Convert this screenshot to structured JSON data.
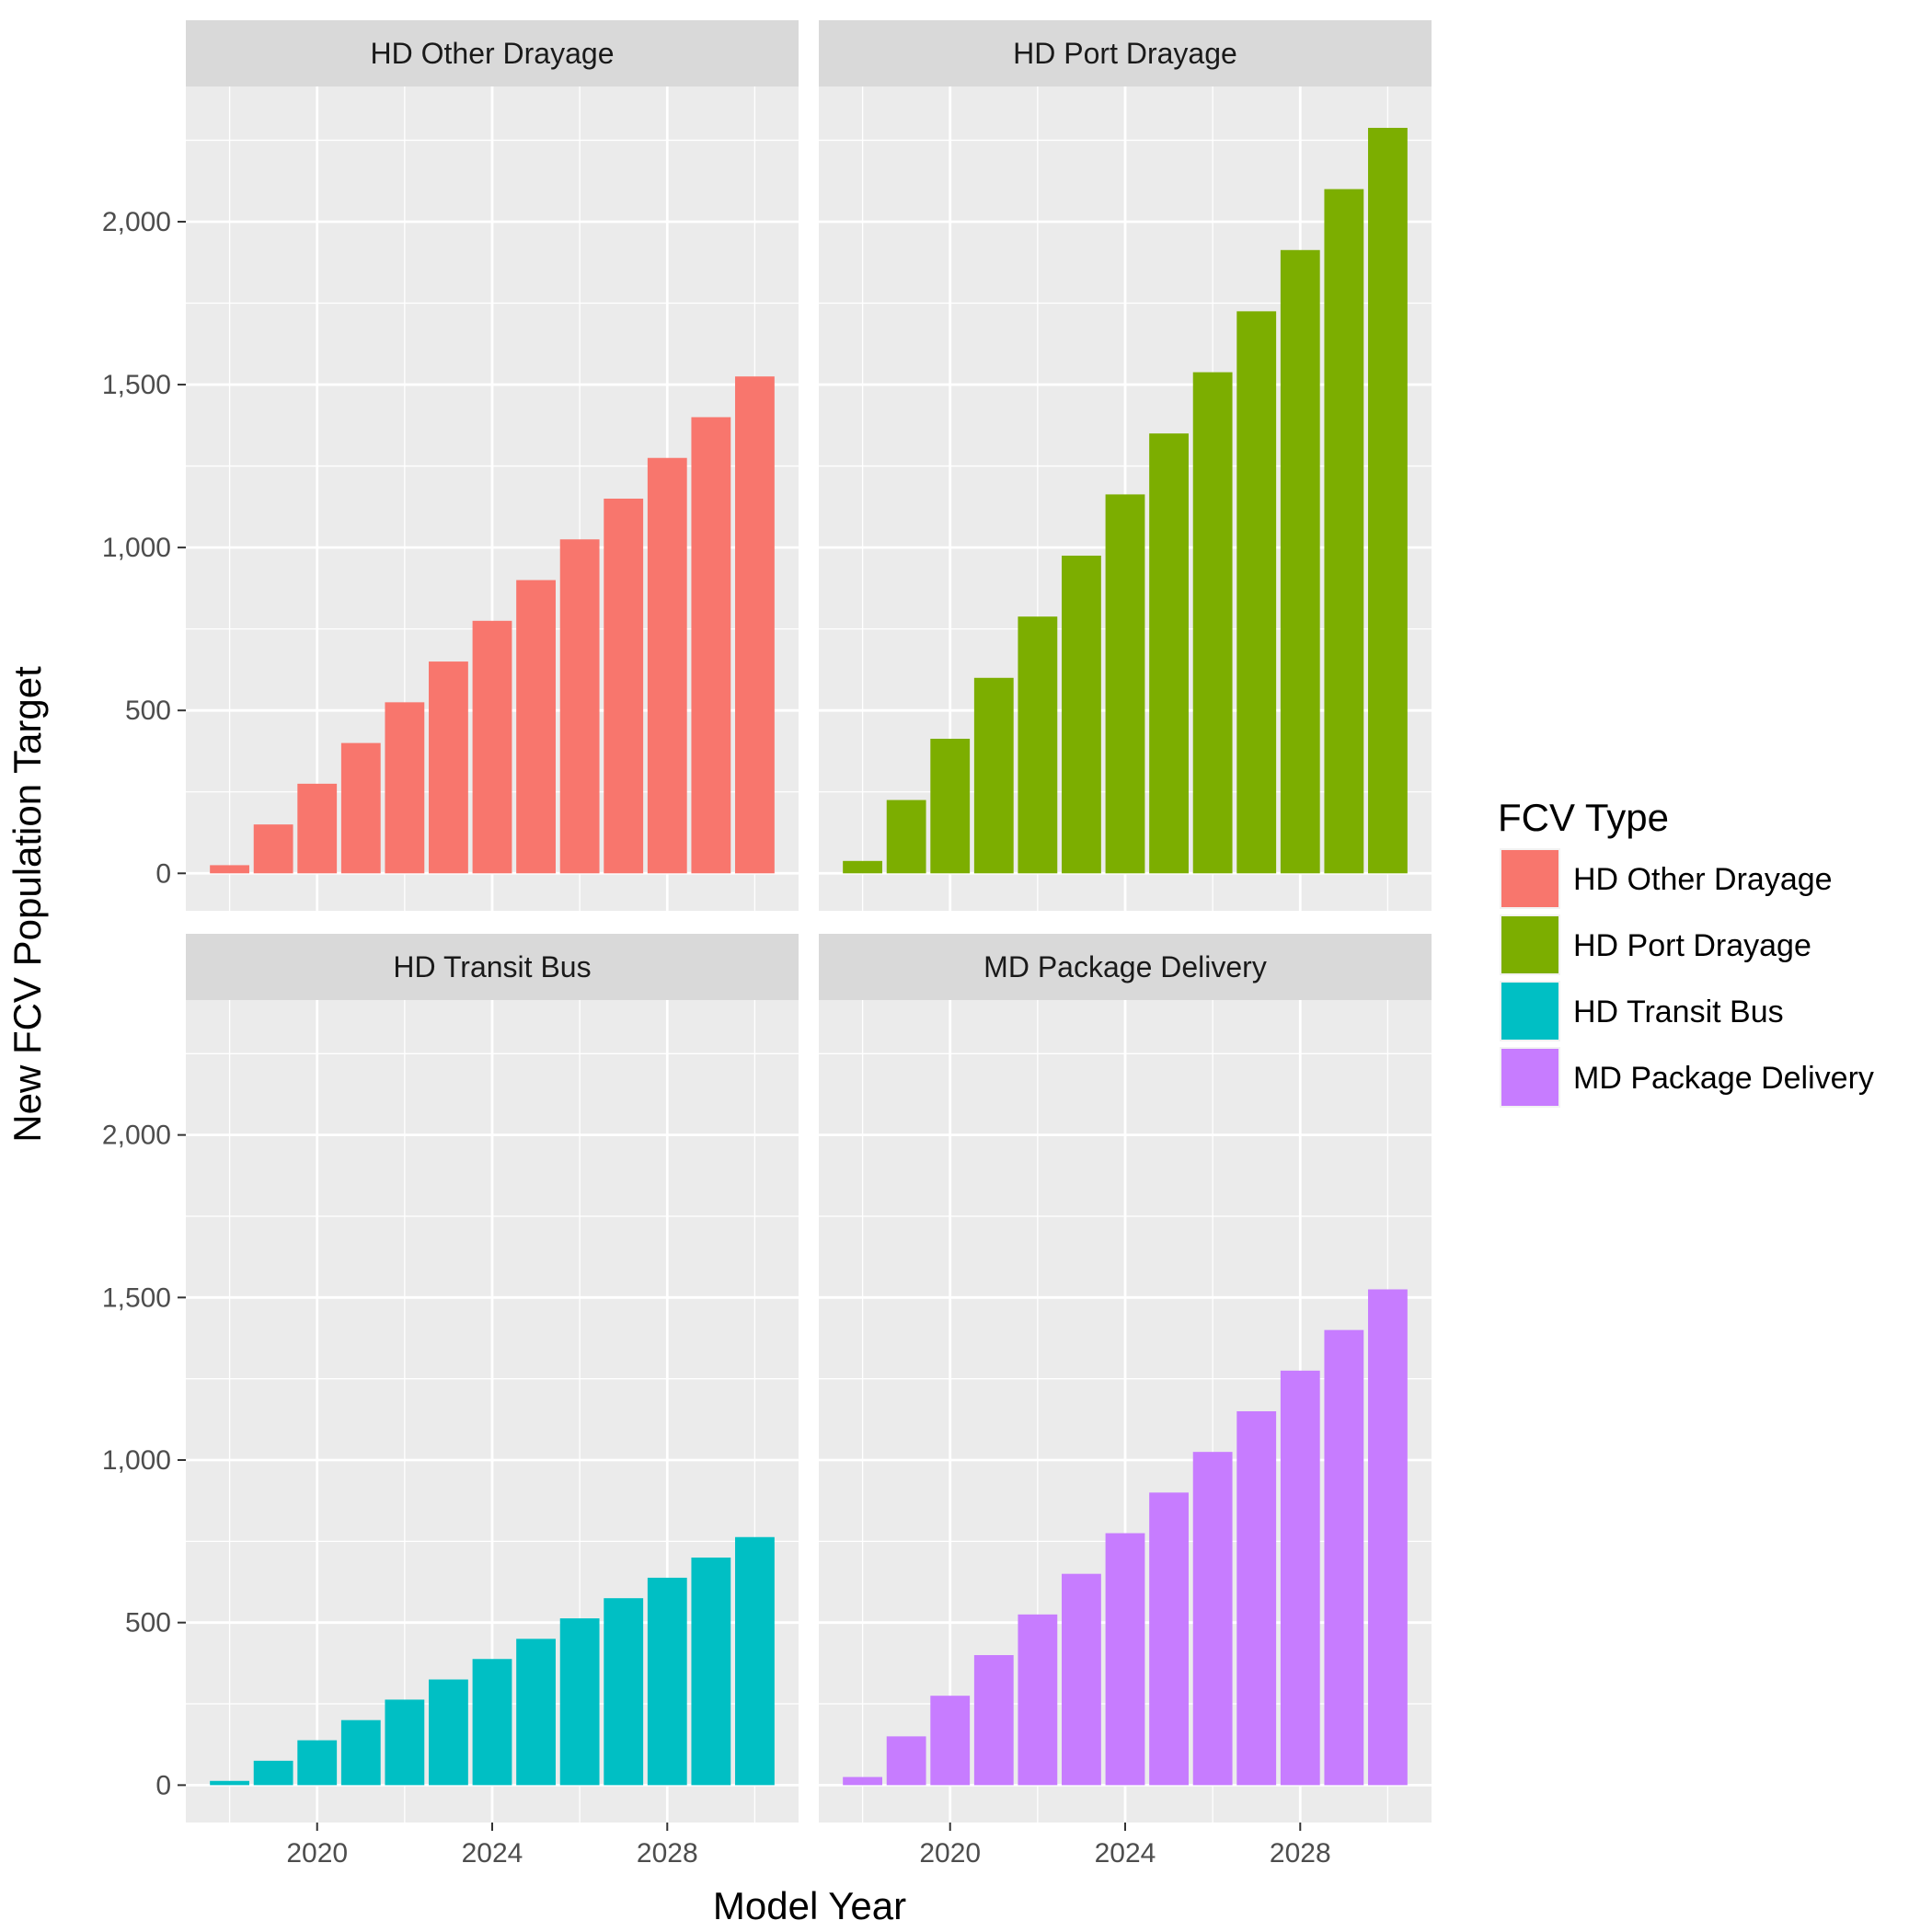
{
  "chart_data": {
    "type": "bar",
    "xlabel": "Model Year",
    "ylabel": "New FCV Population Target",
    "x": [
      2018,
      2019,
      2020,
      2021,
      2022,
      2023,
      2024,
      2025,
      2026,
      2027,
      2028,
      2029,
      2030
    ],
    "x_ticks": [
      2020,
      2024,
      2028
    ],
    "xlim": [
      2017,
      2031
    ],
    "y_ticks": [
      0,
      500,
      1000,
      1500,
      2000
    ],
    "y_tick_labels": [
      "0",
      "500",
      "1,000",
      "1,500",
      "2,000"
    ],
    "ylim": [
      -115,
      2415
    ],
    "grid": true,
    "legend": {
      "title": "FCV Type",
      "position": "right"
    },
    "facets": [
      {
        "name": "HD Other Drayage",
        "color": "#F8766D",
        "values": [
          25,
          150,
          275,
          400,
          525,
          650,
          775,
          900,
          1025,
          1150,
          1275,
          1400,
          1525
        ]
      },
      {
        "name": "HD Port Drayage",
        "color": "#7CAE00",
        "values": [
          38,
          225,
          413,
          600,
          788,
          975,
          1163,
          1350,
          1538,
          1725,
          1913,
          2100,
          2288
        ]
      },
      {
        "name": "HD Transit Bus",
        "color": "#00BFC4",
        "values": [
          13,
          75,
          138,
          200,
          263,
          325,
          388,
          450,
          513,
          575,
          638,
          700,
          763
        ]
      },
      {
        "name": "MD Package Delivery",
        "color": "#C77CFF",
        "values": [
          25,
          150,
          275,
          400,
          525,
          650,
          775,
          900,
          1025,
          1150,
          1275,
          1400,
          1525
        ]
      }
    ]
  }
}
